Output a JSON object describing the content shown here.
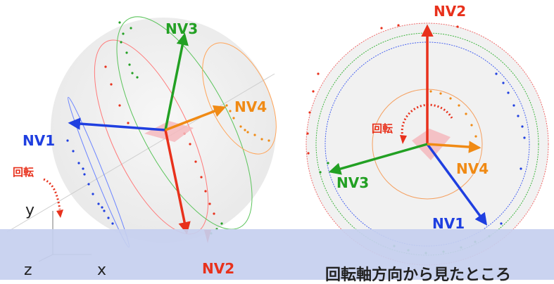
{
  "left_panel": {
    "vectors": {
      "nv1": {
        "label": "NV1",
        "color": "#1f3fe0"
      },
      "nv2": {
        "label": "NV2",
        "color": "#e8311c"
      },
      "nv3": {
        "label": "NV3",
        "color": "#22a023"
      },
      "nv4": {
        "label": "NV4",
        "color": "#f08a14"
      }
    },
    "rotation_label": "回転",
    "axes": {
      "x": "x",
      "y": "y",
      "z": "z"
    }
  },
  "right_panel": {
    "vectors": {
      "nv1": {
        "label": "NV1",
        "color": "#1f3fe0"
      },
      "nv2": {
        "label": "NV2",
        "color": "#e8311c"
      },
      "nv3": {
        "label": "NV3",
        "color": "#22a023"
      },
      "nv4": {
        "label": "NV4",
        "color": "#f08a14"
      }
    },
    "rotation_label": "回転"
  },
  "caption": "回転軸方向から見たところ"
}
